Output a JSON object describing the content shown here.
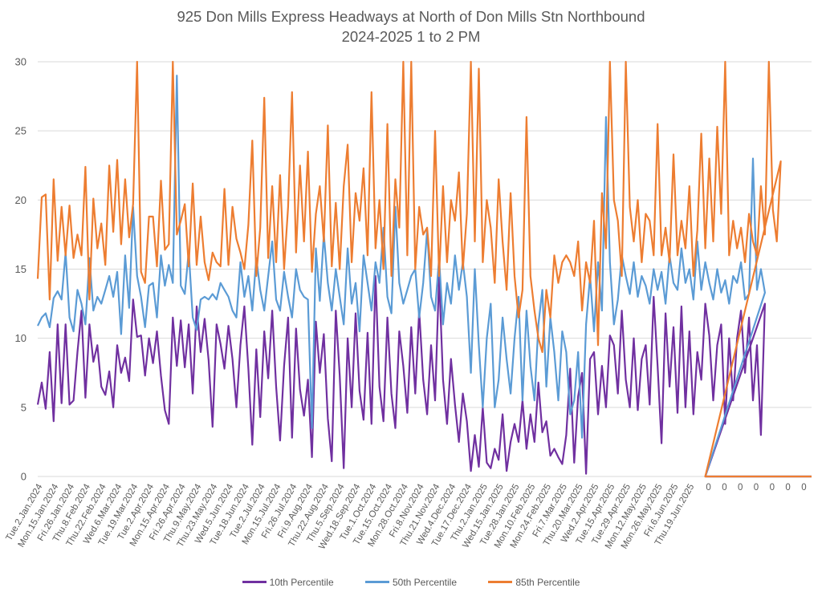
{
  "chart_data": {
    "type": "line",
    "title": "925 Don Mills Express Headways at North of Don Mills Stn Northbound",
    "subtitle": "2024-2025 1 to 2 PM",
    "xlabel": "",
    "ylabel": "",
    "ylim": [
      0,
      30
    ],
    "yticks": [
      0,
      5,
      10,
      15,
      20,
      25,
      30
    ],
    "grid": true,
    "legend_position": "bottom",
    "points_per_label": 4,
    "x_labels": [
      "Tue.2.Jan.2024",
      "Mon.15.Jan.2024",
      "Fri.26.Jan.2024",
      "Thu.8.Feb.2024",
      "Thu.22.Feb.2024",
      "Wed.6.Mar.2024",
      "Tue.19.Mar.2024",
      "Tue.2.Apr.2024",
      "Mon.15.Apr.2024",
      "Fri.26.Apr.2024",
      "Thu.9.May.2024",
      "Thu.23.May.2024",
      "Wed.5.Jun.2024",
      "Tue.18.Jun.2024",
      "Tue.2.Jul.2024",
      "Mon.15.Jul.2024",
      "Fri.26.Jul.2024",
      "Fri.9.Aug.2024",
      "Thu.22.Aug.2024",
      "Thu.5.Sep.2024",
      "Wed.18.Sep.2024",
      "Tue.1.Oct.2024",
      "Tue.15.Oct.2024",
      "Mon.28.Oct.2024",
      "Fri.8.Nov.2024",
      "Thu.21.Nov.2024",
      "Wed.4.Dec.2024",
      "Tue.17.Dec.2024",
      "Thu.2.Jan.2025",
      "Wed.15.Jan.2025",
      "Tue.28.Jan.2025",
      "Mon.10.Feb.2025",
      "Mon.24.Feb.2025",
      "Fri.7.Mar.2025",
      "Thu.20.Mar.2025",
      "Wed.2.Apr.2025",
      "Tue.15.Apr.2025",
      "Tue.29.Apr.2025",
      "Mon.12.May.2025",
      "Mon.26.May.2025",
      "Fri.6.Jun.2025",
      "Thu.19.Jun.2025",
      "0",
      "0",
      "0",
      "0",
      "0",
      "0",
      "0"
    ],
    "series": [
      {
        "name": "10th Percentile",
        "color": "#7030A0",
        "values": [
          5.2,
          6.8,
          4.9,
          9.0,
          4.0,
          11.0,
          5.3,
          11.0,
          5.2,
          5.5,
          9.0,
          12.0,
          5.7,
          11.0,
          8.3,
          9.5,
          6.5,
          5.9,
          7.6,
          5.0,
          9.5,
          7.5,
          8.6,
          6.9,
          12.8,
          10.1,
          10.2,
          7.3,
          10.0,
          8.2,
          10.5,
          7.3,
          4.8,
          3.8,
          11.5,
          8.0,
          11.3,
          7.9,
          11.0,
          6.0,
          12.3,
          9.0,
          11.4,
          8.4,
          3.6,
          11.0,
          9.6,
          7.8,
          10.9,
          8.5,
          5.0,
          9.5,
          12.3,
          7.8,
          2.3,
          9.2,
          4.3,
          10.5,
          7.1,
          12.0,
          6.5,
          2.6,
          8.0,
          11.5,
          2.8,
          10.7,
          6.3,
          4.4,
          7.0,
          1.4,
          11.2,
          7.5,
          10.3,
          4.2,
          1.1,
          12.0,
          7.3,
          0.6,
          10.0,
          5.0,
          11.8,
          6.2,
          4.1,
          10.4,
          3.8,
          14.5,
          6.5,
          4.0,
          11.5,
          6.0,
          3.5,
          10.5,
          8.0,
          4.6,
          10.8,
          6.0,
          12.0,
          7.0,
          4.5,
          9.5,
          5.5,
          14.5,
          7.0,
          3.8,
          8.5,
          5.2,
          2.5,
          6.0,
          4.0,
          0.4,
          3.0,
          0.7,
          5.0,
          1.0,
          0.6,
          2.0,
          1.2,
          4.5,
          0.4,
          2.5,
          3.8,
          2.5,
          5.5,
          2.0,
          4.5,
          2.5,
          6.8,
          3.2,
          4.0,
          1.5,
          2.0,
          1.4,
          0.9,
          3.0,
          7.8,
          1.0,
          5.8,
          7.5,
          0.2,
          8.5,
          9.0,
          4.5,
          8.0,
          5.0,
          10.2,
          9.5,
          6.0,
          12.0,
          7.0,
          5.0,
          10.0,
          4.8,
          8.5,
          9.5,
          5.2,
          13.0,
          8.0,
          2.4,
          11.8,
          6.5,
          10.8,
          4.6,
          12.3,
          5.0,
          10.5,
          4.5,
          9.0,
          7.0,
          12.5,
          10.2,
          5.5,
          9.5,
          11.0,
          3.8,
          10.0,
          5.5,
          10.0,
          12.0,
          7.5,
          11.5,
          5.5,
          9.5,
          3.0,
          12.5,
          0,
          0,
          0,
          0,
          0,
          0,
          0
        ]
      },
      {
        "name": "50th Percentile",
        "color": "#5B9BD5",
        "values": [
          10.9,
          11.5,
          11.8,
          10.8,
          12.9,
          13.4,
          12.8,
          16.2,
          11.5,
          10.5,
          13.5,
          12.5,
          11.0,
          15.8,
          12.0,
          13.0,
          12.5,
          13.5,
          14.5,
          13.0,
          14.8,
          10.3,
          16.0,
          12.2,
          19.5,
          14.5,
          13.0,
          10.8,
          13.8,
          14.0,
          11.5,
          16.0,
          13.8,
          15.3,
          14.0,
          29.0,
          13.8,
          13.2,
          16.3,
          11.5,
          10.6,
          12.8,
          13.0,
          12.8,
          13.2,
          12.8,
          14.0,
          13.5,
          13.0,
          12.0,
          11.5,
          15.5,
          13.0,
          14.5,
          12.0,
          15.8,
          13.5,
          12.0,
          14.5,
          17.0,
          12.8,
          12.0,
          14.8,
          13.0,
          11.5,
          15.0,
          13.5,
          13.0,
          12.8,
          3.5,
          16.5,
          12.7,
          17.5,
          14.0,
          12.0,
          15.0,
          13.0,
          11.0,
          16.5,
          12.5,
          14.0,
          10.5,
          16.0,
          14.0,
          12.0,
          15.5,
          14.0,
          18.0,
          13.0,
          11.8,
          19.5,
          14.0,
          12.5,
          13.5,
          14.5,
          15.0,
          11.5,
          14.0,
          17.8,
          13.0,
          12.0,
          15.8,
          11.0,
          14.0,
          12.5,
          16.0,
          13.5,
          15.5,
          13.0,
          7.5,
          15.0,
          9.5,
          5.0,
          10.0,
          12.5,
          5.0,
          7.0,
          11.5,
          8.5,
          6.0,
          10.0,
          13.0,
          5.5,
          12.0,
          8.0,
          5.5,
          11.0,
          13.5,
          6.5,
          11.5,
          9.0,
          5.5,
          10.5,
          9.0,
          4.5,
          5.5,
          9.0,
          2.8,
          11.0,
          14.5,
          10.5,
          15.5,
          12.0,
          26.0,
          15.5,
          11.0,
          12.8,
          16.0,
          14.5,
          13.2,
          15.5,
          13.0,
          14.5,
          13.8,
          12.5,
          15.0,
          13.5,
          14.8,
          12.5,
          16.0,
          14.0,
          13.5,
          16.5,
          14.0,
          15.0,
          12.8,
          17.0,
          13.5,
          15.5,
          14.0,
          12.8,
          15.0,
          13.3,
          14.2,
          12.5,
          14.5,
          14.0,
          15.5,
          12.8,
          13.2,
          23.0,
          13.5,
          15.0,
          13.3,
          0,
          0,
          0,
          0,
          0,
          0,
          0
        ]
      },
      {
        "name": "85th Percentile",
        "color": "#ED7D31",
        "values": [
          14.3,
          20.2,
          20.4,
          12.8,
          21.5,
          15.6,
          19.5,
          16.0,
          19.6,
          15.8,
          17.5,
          16.0,
          22.4,
          12.8,
          20.1,
          16.5,
          18.3,
          15.3,
          22.5,
          17.7,
          22.9,
          16.8,
          21.5,
          17.3,
          19.7,
          30.0,
          14.8,
          14.0,
          18.8,
          18.8,
          15.2,
          21.4,
          16.4,
          16.8,
          30.0,
          17.5,
          18.5,
          19.7,
          15.2,
          21.2,
          15.3,
          18.8,
          15.5,
          14.2,
          16.2,
          15.5,
          15.2,
          20.8,
          15.3,
          19.5,
          17.2,
          16.2,
          15.0,
          18.2,
          24.3,
          14.5,
          18.0,
          27.4,
          15.8,
          21.0,
          15.5,
          21.8,
          15.0,
          19.5,
          27.8,
          16.2,
          22.5,
          17.0,
          23.5,
          14.8,
          19.0,
          21.0,
          17.0,
          25.4,
          15.2,
          19.8,
          15.0,
          21.0,
          24.0,
          15.5,
          20.5,
          18.5,
          22.3,
          16.0,
          27.8,
          16.5,
          20.0,
          15.0,
          25.5,
          14.5,
          21.5,
          18.0,
          30.0,
          16.0,
          30.0,
          15.0,
          19.5,
          17.5,
          18.0,
          14.5,
          25.0,
          14.5,
          21.0,
          15.5,
          20.0,
          18.5,
          22.0,
          15.0,
          19.0,
          30.0,
          17.0,
          29.5,
          15.5,
          20.0,
          18.0,
          14.0,
          21.5,
          17.0,
          13.5,
          20.5,
          14.5,
          11.5,
          13.5,
          26.0,
          14.5,
          12.0,
          10.0,
          9.0,
          13.5,
          11.5,
          16.0,
          14.0,
          15.5,
          16.0,
          15.5,
          14.5,
          17.0,
          12.0,
          15.5,
          14.0,
          18.5,
          9.5,
          20.5,
          16.5,
          30.0,
          20.0,
          18.5,
          14.5,
          30.0,
          19.5,
          17.0,
          20.0,
          15.5,
          19.0,
          18.5,
          16.0,
          25.5,
          16.0,
          18.0,
          15.5,
          23.3,
          16.0,
          18.5,
          16.5,
          21.0,
          14.5,
          17.8,
          24.8,
          16.5,
          23.0,
          17.0,
          25.3,
          19.0,
          30.0,
          16.0,
          18.5,
          16.5,
          18.0,
          15.5,
          19.0,
          17.0,
          16.0,
          21.0,
          17.5,
          30.0,
          19.3,
          17.0,
          22.8,
          0,
          0,
          0,
          0,
          0,
          0,
          0
        ]
      }
    ]
  }
}
